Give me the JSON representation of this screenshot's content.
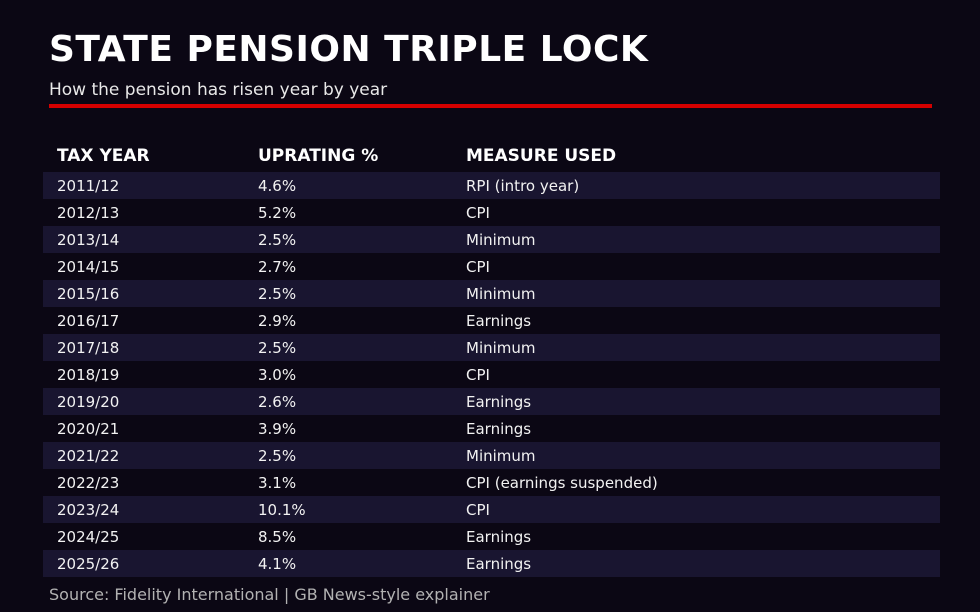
{
  "header": {
    "title": "STATE PENSION TRIPLE LOCK",
    "subtitle": "How the pension has risen year by year"
  },
  "colors": {
    "background": "#0b0714",
    "row_stripe": "#191530",
    "accent_red": "#d40000",
    "body_text": "#f2f2f2",
    "muted_text": "#b2b2b2"
  },
  "table": {
    "columns": [
      "TAX YEAR",
      "UPRATING %",
      "MEASURE USED"
    ],
    "rows": [
      [
        "2011/12",
        "4.6%",
        "RPI (intro year)"
      ],
      [
        "2012/13",
        "5.2%",
        "CPI"
      ],
      [
        "2013/14",
        "2.5%",
        "Minimum"
      ],
      [
        "2014/15",
        "2.7%",
        "CPI"
      ],
      [
        "2015/16",
        "2.5%",
        "Minimum"
      ],
      [
        "2016/17",
        "2.9%",
        "Earnings"
      ],
      [
        "2017/18",
        "2.5%",
        "Minimum"
      ],
      [
        "2018/19",
        "3.0%",
        "CPI"
      ],
      [
        "2019/20",
        "2.6%",
        "Earnings"
      ],
      [
        "2020/21",
        "3.9%",
        "Earnings"
      ],
      [
        "2021/22",
        "2.5%",
        "Minimum"
      ],
      [
        "2022/23",
        "3.1%",
        "CPI (earnings suspended)"
      ],
      [
        "2023/24",
        "10.1%",
        "CPI"
      ],
      [
        "2024/25",
        "8.5%",
        "Earnings"
      ],
      [
        "2025/26",
        "4.1%",
        "Earnings"
      ]
    ]
  },
  "footer": {
    "source": "Source: Fidelity International | GB News-style explainer"
  },
  "chart_data": {
    "type": "table",
    "title": "STATE PENSION TRIPLE LOCK",
    "subtitle": "How the pension has risen year by year",
    "columns": [
      "TAX YEAR",
      "UPRATING %",
      "MEASURE USED"
    ],
    "rows": [
      [
        "2011/12",
        "4.6%",
        "RPI (intro year)"
      ],
      [
        "2012/13",
        "5.2%",
        "CPI"
      ],
      [
        "2013/14",
        "2.5%",
        "Minimum"
      ],
      [
        "2014/15",
        "2.7%",
        "CPI"
      ],
      [
        "2015/16",
        "2.5%",
        "Minimum"
      ],
      [
        "2016/17",
        "2.9%",
        "Earnings"
      ],
      [
        "2017/18",
        "2.5%",
        "Minimum"
      ],
      [
        "2018/19",
        "3.0%",
        "CPI"
      ],
      [
        "2019/20",
        "2.6%",
        "Earnings"
      ],
      [
        "2020/21",
        "3.9%",
        "Earnings"
      ],
      [
        "2021/22",
        "2.5%",
        "Minimum"
      ],
      [
        "2022/23",
        "3.1%",
        "CPI (earnings suspended)"
      ],
      [
        "2023/24",
        "10.1%",
        "CPI"
      ],
      [
        "2024/25",
        "8.5%",
        "Earnings"
      ],
      [
        "2025/26",
        "4.1%",
        "Earnings"
      ]
    ],
    "numeric": {
      "categories": [
        "2011/12",
        "2012/13",
        "2013/14",
        "2014/15",
        "2015/16",
        "2016/17",
        "2017/18",
        "2018/19",
        "2019/20",
        "2020/21",
        "2021/22",
        "2022/23",
        "2023/24",
        "2024/25",
        "2025/26"
      ],
      "uprating_percent": [
        4.6,
        5.2,
        2.5,
        2.7,
        2.5,
        2.9,
        2.5,
        3.0,
        2.6,
        3.9,
        2.5,
        3.1,
        10.1,
        8.5,
        4.1
      ],
      "measures": [
        "RPI (intro year)",
        "CPI",
        "Minimum",
        "CPI",
        "Minimum",
        "Earnings",
        "Minimum",
        "CPI",
        "Earnings",
        "Earnings",
        "Minimum",
        "CPI (earnings suspended)",
        "CPI",
        "Earnings",
        "Earnings"
      ]
    },
    "legend_position": "none",
    "grid": false
  }
}
